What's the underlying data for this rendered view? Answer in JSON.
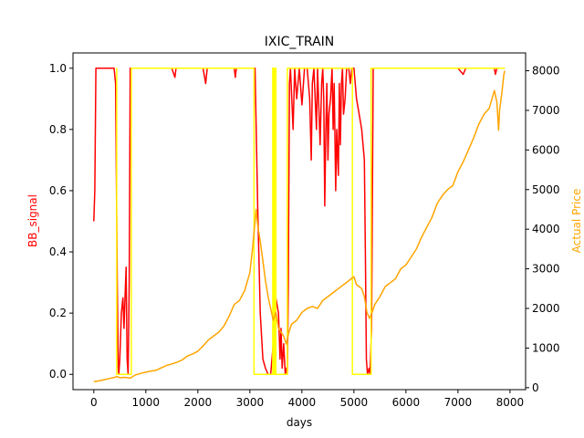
{
  "chart_data": {
    "type": "line",
    "title": "IXIC_TRAIN",
    "xlabel": "days",
    "ylabel": "BB_signal",
    "y2label": "Actual Price",
    "xlim": [
      -400,
      8300
    ],
    "ylim": [
      -0.05,
      1.05
    ],
    "y2lim": [
      -50,
      8450
    ],
    "x_ticks": [
      0,
      1000,
      2000,
      3000,
      4000,
      5000,
      6000,
      7000,
      8000
    ],
    "y_ticks": [
      0.0,
      0.2,
      0.4,
      0.6,
      0.8,
      1.0
    ],
    "y_tick_labels": [
      "0.0",
      "0.2",
      "0.4",
      "0.6",
      "0.8",
      "1.0"
    ],
    "y2_ticks": [
      0,
      1000,
      2000,
      3000,
      4000,
      5000,
      6000,
      7000,
      8000
    ],
    "colors": {
      "bb_signal": "#ff0000",
      "position": "#ffff00",
      "price": "#ffa500",
      "ylabel": "#ff0000",
      "y2label": "#ffa500"
    },
    "series": [
      {
        "axis": "left",
        "color": "#ff0000",
        "points": [
          [
            0,
            0.5
          ],
          [
            20,
            0.6
          ],
          [
            40,
            1.0
          ],
          [
            300,
            1.0
          ],
          [
            390,
            1.0
          ],
          [
            420,
            0.95
          ],
          [
            450,
            0.3
          ],
          [
            470,
            0.02
          ],
          [
            480,
            0.0
          ],
          [
            500,
            0.05
          ],
          [
            530,
            0.2
          ],
          [
            560,
            0.25
          ],
          [
            580,
            0.15
          ],
          [
            600,
            0.25
          ],
          [
            620,
            0.35
          ],
          [
            640,
            0.05
          ],
          [
            660,
            0.0
          ],
          [
            680,
            0.3
          ],
          [
            700,
            1.0
          ],
          [
            1500,
            1.0
          ],
          [
            1560,
            0.97
          ],
          [
            1580,
            1.0
          ],
          [
            2100,
            1.0
          ],
          [
            2150,
            0.95
          ],
          [
            2180,
            1.0
          ],
          [
            2700,
            1.0
          ],
          [
            2720,
            0.97
          ],
          [
            2740,
            1.0
          ],
          [
            3100,
            1.0
          ],
          [
            3150,
            0.55
          ],
          [
            3200,
            0.2
          ],
          [
            3250,
            0.05
          ],
          [
            3300,
            0.02
          ],
          [
            3350,
            0.0
          ],
          [
            3400,
            0.0
          ],
          [
            3450,
            0.1
          ],
          [
            3500,
            0.25
          ],
          [
            3550,
            0.2
          ],
          [
            3580,
            0.05
          ],
          [
            3600,
            0.15
          ],
          [
            3620,
            0.02
          ],
          [
            3650,
            0.1
          ],
          [
            3680,
            0.0
          ],
          [
            3700,
            0.02
          ],
          [
            3720,
            0.0
          ],
          [
            3740,
            0.3
          ],
          [
            3760,
            0.95
          ],
          [
            3780,
            1.0
          ],
          [
            3830,
            0.8
          ],
          [
            3860,
            1.0
          ],
          [
            3900,
            0.9
          ],
          [
            3950,
            1.0
          ],
          [
            4000,
            0.88
          ],
          [
            4050,
            1.0
          ],
          [
            4100,
            1.0
          ],
          [
            4150,
            0.9
          ],
          [
            4180,
            0.7
          ],
          [
            4200,
            0.95
          ],
          [
            4230,
            1.0
          ],
          [
            4280,
            0.8
          ],
          [
            4300,
            1.0
          ],
          [
            4350,
            0.75
          ],
          [
            4380,
            0.95
          ],
          [
            4400,
            1.0
          ],
          [
            4420,
            0.9
          ],
          [
            4440,
            0.55
          ],
          [
            4460,
            0.8
          ],
          [
            4480,
            0.95
          ],
          [
            4500,
            0.7
          ],
          [
            4520,
            0.85
          ],
          [
            4550,
            0.9
          ],
          [
            4580,
            1.0
          ],
          [
            4600,
            0.8
          ],
          [
            4620,
            0.95
          ],
          [
            4650,
            0.6
          ],
          [
            4670,
            0.8
          ],
          [
            4700,
            0.65
          ],
          [
            4720,
            0.95
          ],
          [
            4740,
            0.75
          ],
          [
            4760,
            0.95
          ],
          [
            4780,
            1.0
          ],
          [
            4800,
            0.85
          ],
          [
            4830,
            0.9
          ],
          [
            4860,
            1.0
          ],
          [
            4900,
            1.0
          ],
          [
            4930,
            0.95
          ],
          [
            4960,
            1.0
          ],
          [
            5000,
            1.0
          ],
          [
            5050,
            0.9
          ],
          [
            5100,
            0.85
          ],
          [
            5150,
            0.8
          ],
          [
            5200,
            0.7
          ],
          [
            5220,
            0.4
          ],
          [
            5240,
            0.05
          ],
          [
            5260,
            0.0
          ],
          [
            5290,
            0.02
          ],
          [
            5310,
            0.0
          ],
          [
            5340,
            0.15
          ],
          [
            5370,
            1.0
          ],
          [
            7000,
            1.0
          ],
          [
            7100,
            0.98
          ],
          [
            7150,
            1.0
          ],
          [
            7700,
            1.0
          ],
          [
            7720,
            0.98
          ],
          [
            7750,
            1.0
          ],
          [
            7900,
            1.0
          ]
        ]
      },
      {
        "axis": "left",
        "color": "#ffff00",
        "points": [
          [
            430,
            1.0
          ],
          [
            440,
            1.0
          ],
          [
            440,
            0.0
          ],
          [
            720,
            0.0
          ],
          [
            720,
            1.0
          ],
          [
            3080,
            1.0
          ],
          [
            3080,
            0.0
          ],
          [
            3440,
            0.0
          ],
          [
            3440,
            1.0
          ],
          [
            3460,
            1.0
          ],
          [
            3460,
            0.0
          ],
          [
            3480,
            0.0
          ],
          [
            3480,
            1.0
          ],
          [
            3500,
            1.0
          ],
          [
            3500,
            0.0
          ],
          [
            3720,
            0.0
          ],
          [
            3720,
            1.0
          ],
          [
            4970,
            1.0
          ],
          [
            4970,
            0.0
          ],
          [
            5330,
            0.0
          ],
          [
            5330,
            1.0
          ],
          [
            7900,
            1.0
          ]
        ]
      },
      {
        "axis": "right",
        "color": "#ffa500",
        "points": [
          [
            0,
            150
          ],
          [
            100,
            170
          ],
          [
            200,
            200
          ],
          [
            300,
            230
          ],
          [
            400,
            260
          ],
          [
            450,
            280
          ],
          [
            500,
            250
          ],
          [
            600,
            260
          ],
          [
            700,
            240
          ],
          [
            800,
            320
          ],
          [
            900,
            360
          ],
          [
            1000,
            390
          ],
          [
            1100,
            420
          ],
          [
            1200,
            440
          ],
          [
            1300,
            500
          ],
          [
            1400,
            560
          ],
          [
            1500,
            600
          ],
          [
            1600,
            640
          ],
          [
            1700,
            700
          ],
          [
            1800,
            800
          ],
          [
            1900,
            850
          ],
          [
            2000,
            920
          ],
          [
            2100,
            1050
          ],
          [
            2200,
            1200
          ],
          [
            2300,
            1300
          ],
          [
            2400,
            1400
          ],
          [
            2500,
            1550
          ],
          [
            2600,
            1800
          ],
          [
            2700,
            2100
          ],
          [
            2800,
            2200
          ],
          [
            2900,
            2450
          ],
          [
            3000,
            2900
          ],
          [
            3050,
            3500
          ],
          [
            3100,
            4200
          ],
          [
            3120,
            4500
          ],
          [
            3150,
            4100
          ],
          [
            3200,
            3700
          ],
          [
            3250,
            3200
          ],
          [
            3300,
            2700
          ],
          [
            3350,
            2300
          ],
          [
            3400,
            2000
          ],
          [
            3450,
            1700
          ],
          [
            3500,
            1900
          ],
          [
            3550,
            1500
          ],
          [
            3600,
            1400
          ],
          [
            3650,
            1300
          ],
          [
            3700,
            1100
          ],
          [
            3750,
            1400
          ],
          [
            3800,
            1600
          ],
          [
            3900,
            1700
          ],
          [
            4000,
            1900
          ],
          [
            4100,
            2000
          ],
          [
            4200,
            2050
          ],
          [
            4300,
            2000
          ],
          [
            4400,
            2200
          ],
          [
            4500,
            2300
          ],
          [
            4600,
            2400
          ],
          [
            4700,
            2500
          ],
          [
            4800,
            2600
          ],
          [
            4900,
            2700
          ],
          [
            4950,
            2750
          ],
          [
            5000,
            2800
          ],
          [
            5050,
            2600
          ],
          [
            5100,
            2550
          ],
          [
            5150,
            2500
          ],
          [
            5200,
            2300
          ],
          [
            5250,
            1900
          ],
          [
            5300,
            1750
          ],
          [
            5350,
            1900
          ],
          [
            5400,
            2100
          ],
          [
            5500,
            2300
          ],
          [
            5600,
            2550
          ],
          [
            5700,
            2650
          ],
          [
            5800,
            2750
          ],
          [
            5900,
            3000
          ],
          [
            6000,
            3100
          ],
          [
            6100,
            3300
          ],
          [
            6200,
            3500
          ],
          [
            6300,
            3800
          ],
          [
            6400,
            4050
          ],
          [
            6500,
            4300
          ],
          [
            6600,
            4650
          ],
          [
            6700,
            4850
          ],
          [
            6800,
            5000
          ],
          [
            6900,
            5100
          ],
          [
            7000,
            5450
          ],
          [
            7100,
            5700
          ],
          [
            7200,
            6000
          ],
          [
            7300,
            6300
          ],
          [
            7400,
            6650
          ],
          [
            7500,
            6900
          ],
          [
            7600,
            7050
          ],
          [
            7700,
            7500
          ],
          [
            7750,
            7200
          ],
          [
            7780,
            6500
          ],
          [
            7800,
            7000
          ],
          [
            7850,
            7500
          ],
          [
            7880,
            7900
          ],
          [
            7900,
            8000
          ]
        ]
      }
    ]
  }
}
